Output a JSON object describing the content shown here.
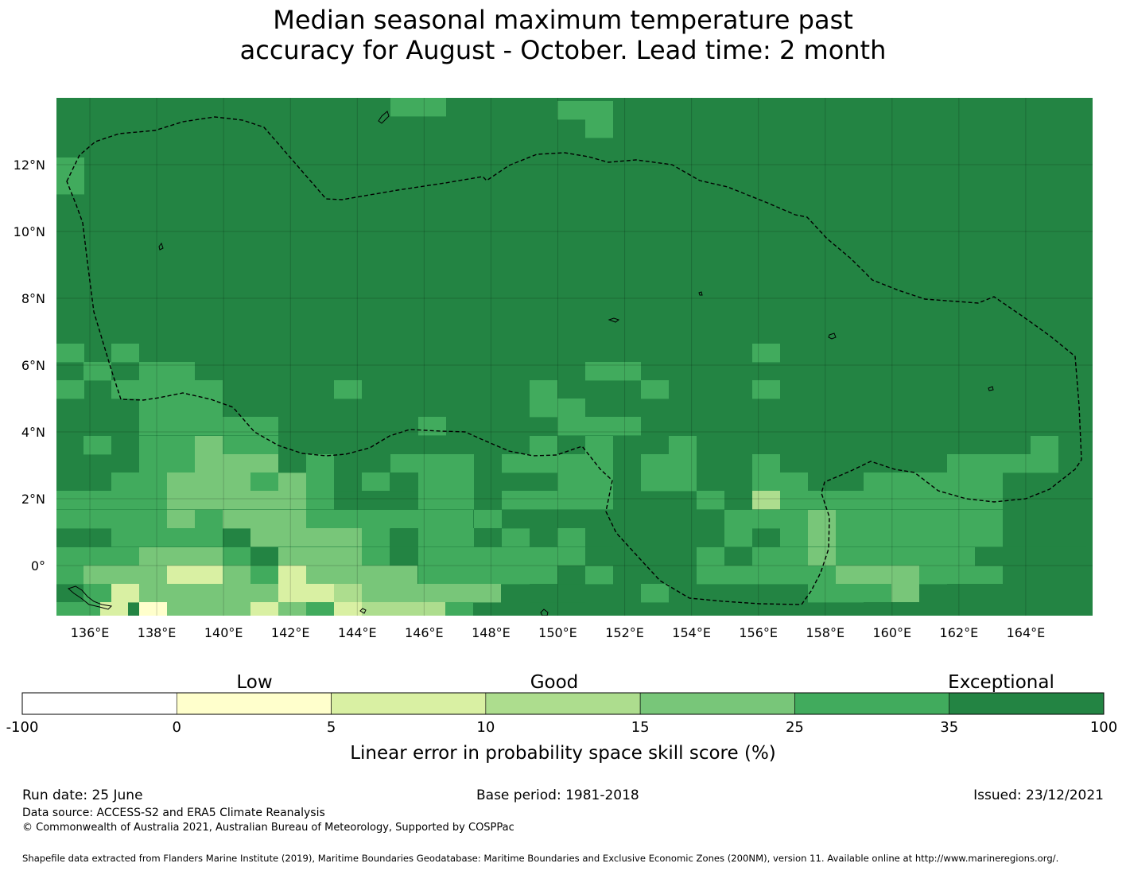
{
  "title": {
    "line1": "Median seasonal maximum temperature past",
    "line2": "accuracy for August - October. Lead time: 2 month"
  },
  "map": {
    "lon_range": [
      135,
      166
    ],
    "lat_range": [
      -1.5,
      14
    ],
    "grid_cell_deg": 0.833,
    "background_category": "35-100",
    "lon_ticks": [
      "136°E",
      "138°E",
      "140°E",
      "142°E",
      "144°E",
      "146°E",
      "148°E",
      "150°E",
      "152°E",
      "154°E",
      "156°E",
      "158°E",
      "160°E",
      "162°E",
      "164°E"
    ],
    "lat_ticks": [
      "12°N",
      "10°N",
      "8°N",
      "6°N",
      "4°N",
      "2°N",
      "0°"
    ],
    "gridlines": true,
    "eez_boundary": "dashed black line",
    "coastline": "thin black line"
  },
  "colorbar": {
    "categories": [
      {
        "label": "Low",
        "position": "0-5"
      },
      {
        "label": "Good",
        "position": "10-15"
      },
      {
        "label": "Exceptional",
        "position": "35-100"
      }
    ],
    "bins": [
      {
        "range": "-100 to 0",
        "color": "#ffffff"
      },
      {
        "range": "0 to 5",
        "color": "#ffffcc"
      },
      {
        "range": "5 to 10",
        "color": "#d9f0a3"
      },
      {
        "range": "10 to 15",
        "color": "#addd8e"
      },
      {
        "range": "15 to 25",
        "color": "#78c679"
      },
      {
        "range": "25 to 35",
        "color": "#41ab5d"
      },
      {
        "range": "35 to 100",
        "color": "#238443"
      }
    ],
    "tick_labels": [
      "-100",
      "0",
      "5",
      "10",
      "15",
      "25",
      "35",
      "100"
    ],
    "title": "Linear error in probability space skill score (%)"
  },
  "footer": {
    "run_date": "Run date: 25 June",
    "base_period": "Base period: 1981-2018",
    "issued": "Issued: 23/12/2021",
    "data_source": "Data source: ACCESS-S2 and ERA5 Climate Reanalysis",
    "copyright": "© Commonwealth of Australia 2021, Australian Bureau of Meteorology, Supported by COSPPac",
    "shapefile": "Shapefile data extracted from Flanders Marine Institute (2019), Maritime Boundaries Geodatabase: Maritime Boundaries and Exclusive Economic Zones (200NM), version 11. Available online at http://www.marineregions.org/."
  },
  "colors": {
    "cat_0_5": "#ffffcc",
    "cat_5_10": "#d9f0a3",
    "cat_10_15": "#addd8e",
    "cat_15_25": "#78c679",
    "cat_25_35": "#41ab5d",
    "cat_35_100": "#238443"
  }
}
